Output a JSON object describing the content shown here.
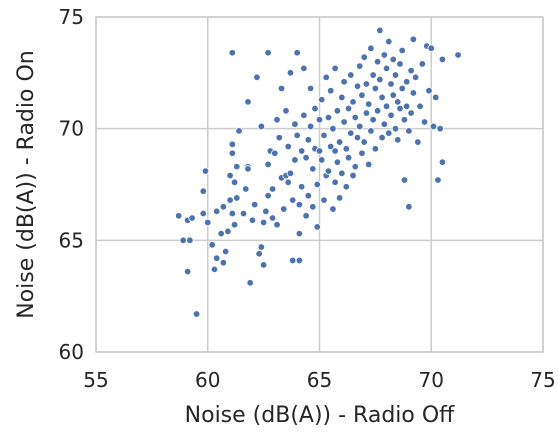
{
  "chart_data": {
    "type": "scatter",
    "xlabel": "Noise (dB(A)) - Radio Off",
    "ylabel": "Noise (dB(A)) - Radio On",
    "xlim": [
      55,
      75
    ],
    "ylim": [
      60,
      75
    ],
    "xticks": [
      "55",
      "60",
      "65",
      "70",
      "75"
    ],
    "yticks": [
      "60",
      "65",
      "70",
      "75"
    ],
    "grid": true,
    "marker_color": "#4c72b0",
    "series": [
      {
        "points": [
          [
            58.7,
            66.1
          ],
          [
            58.9,
            65.0
          ],
          [
            59.1,
            63.6
          ],
          [
            59.1,
            65.9
          ],
          [
            59.2,
            65.0
          ],
          [
            59.3,
            66.0
          ],
          [
            59.5,
            61.7
          ],
          [
            59.8,
            66.2
          ],
          [
            59.8,
            67.2
          ],
          [
            59.9,
            68.1
          ],
          [
            60.0,
            65.8
          ],
          [
            60.2,
            64.8
          ],
          [
            60.3,
            63.7
          ],
          [
            60.4,
            64.2
          ],
          [
            60.4,
            66.3
          ],
          [
            60.6,
            65.3
          ],
          [
            60.7,
            64.0
          ],
          [
            60.7,
            66.5
          ],
          [
            60.8,
            64.5
          ],
          [
            60.9,
            65.4
          ],
          [
            61.0,
            66.8
          ],
          [
            61.0,
            67.9
          ],
          [
            61.1,
            66.2
          ],
          [
            61.1,
            68.9
          ],
          [
            61.1,
            69.3
          ],
          [
            61.2,
            65.7
          ],
          [
            61.2,
            67.6
          ],
          [
            61.1,
            73.4
          ],
          [
            61.3,
            66.9
          ],
          [
            61.3,
            68.3
          ],
          [
            61.4,
            69.9
          ],
          [
            61.6,
            66.2
          ],
          [
            61.7,
            67.3
          ],
          [
            61.8,
            68.3
          ],
          [
            61.9,
            63.1
          ],
          [
            61.8,
            68.2
          ],
          [
            61.8,
            71.2
          ],
          [
            62.0,
            65.9
          ],
          [
            62.1,
            66.6
          ],
          [
            62.2,
            72.3
          ],
          [
            62.3,
            64.4
          ],
          [
            62.4,
            64.7
          ],
          [
            62.4,
            70.1
          ],
          [
            62.5,
            63.9
          ],
          [
            62.5,
            65.8
          ],
          [
            62.6,
            66.3
          ],
          [
            62.7,
            67.0
          ],
          [
            62.7,
            68.4
          ],
          [
            62.8,
            69.0
          ],
          [
            62.7,
            73.4
          ],
          [
            62.9,
            66.0
          ],
          [
            62.9,
            67.3
          ],
          [
            63.0,
            68.9
          ],
          [
            63.1,
            70.4
          ],
          [
            63.1,
            65.7
          ],
          [
            63.2,
            69.6
          ],
          [
            63.3,
            67.8
          ],
          [
            63.3,
            71.8
          ],
          [
            63.4,
            66.4
          ],
          [
            63.5,
            67.9
          ],
          [
            63.5,
            70.8
          ],
          [
            63.6,
            67.6
          ],
          [
            63.6,
            69.2
          ],
          [
            63.7,
            68.0
          ],
          [
            63.7,
            72.5
          ],
          [
            63.8,
            64.1
          ],
          [
            63.8,
            66.8
          ],
          [
            63.9,
            68.6
          ],
          [
            63.9,
            70.2
          ],
          [
            64.0,
            69.7
          ],
          [
            64.0,
            73.4
          ],
          [
            64.1,
            64.1
          ],
          [
            64.1,
            65.3
          ],
          [
            64.1,
            66.6
          ],
          [
            64.2,
            67.4
          ],
          [
            64.2,
            69.0
          ],
          [
            64.3,
            70.6
          ],
          [
            64.3,
            72.7
          ],
          [
            64.4,
            66.1
          ],
          [
            64.4,
            68.7
          ],
          [
            64.5,
            67.0
          ],
          [
            64.5,
            69.5
          ],
          [
            64.6,
            70.1
          ],
          [
            64.6,
            71.8
          ],
          [
            64.7,
            66.5
          ],
          [
            64.7,
            68.2
          ],
          [
            64.8,
            69.1
          ],
          [
            64.8,
            70.9
          ],
          [
            64.9,
            65.6
          ],
          [
            64.9,
            67.5
          ],
          [
            65.0,
            69.0
          ],
          [
            65.0,
            70.4
          ],
          [
            65.1,
            68.6
          ],
          [
            65.1,
            71.3
          ],
          [
            65.2,
            66.8
          ],
          [
            65.2,
            69.7
          ],
          [
            65.3,
            67.9
          ],
          [
            65.3,
            72.3
          ],
          [
            65.4,
            70.5
          ],
          [
            65.4,
            68.1
          ],
          [
            65.5,
            69.2
          ],
          [
            65.5,
            71.7
          ],
          [
            65.6,
            66.4
          ],
          [
            65.6,
            70.0
          ],
          [
            65.7,
            67.6
          ],
          [
            65.7,
            69.0
          ],
          [
            65.7,
            72.7
          ],
          [
            65.8,
            68.5
          ],
          [
            65.8,
            70.8
          ],
          [
            65.9,
            66.9
          ],
          [
            65.9,
            69.4
          ],
          [
            66.0,
            71.4
          ],
          [
            66.0,
            68.0
          ],
          [
            66.1,
            70.3
          ],
          [
            66.1,
            72.1
          ],
          [
            66.2,
            69.1
          ],
          [
            66.2,
            67.4
          ],
          [
            66.3,
            70.9
          ],
          [
            66.3,
            68.7
          ],
          [
            66.4,
            72.4
          ],
          [
            66.4,
            69.8
          ],
          [
            66.5,
            71.2
          ],
          [
            66.5,
            67.9
          ],
          [
            66.6,
            70.5
          ],
          [
            66.6,
            68.3
          ],
          [
            66.7,
            71.9
          ],
          [
            66.7,
            69.6
          ],
          [
            66.8,
            72.8
          ],
          [
            66.8,
            70.1
          ],
          [
            66.9,
            68.9
          ],
          [
            66.9,
            71.5
          ],
          [
            67.0,
            73.2
          ],
          [
            67.0,
            69.4
          ],
          [
            67.1,
            70.7
          ],
          [
            67.1,
            72.0
          ],
          [
            67.2,
            68.4
          ],
          [
            67.2,
            71.1
          ],
          [
            67.3,
            73.6
          ],
          [
            67.3,
            69.9
          ],
          [
            67.4,
            72.4
          ],
          [
            67.4,
            70.4
          ],
          [
            67.5,
            71.8
          ],
          [
            67.5,
            69.1
          ],
          [
            67.6,
            73.0
          ],
          [
            67.6,
            70.8
          ],
          [
            67.7,
            74.4
          ],
          [
            67.7,
            72.2
          ],
          [
            67.8,
            69.6
          ],
          [
            67.8,
            71.4
          ],
          [
            67.9,
            73.3
          ],
          [
            67.9,
            70.2
          ],
          [
            68.0,
            72.7
          ],
          [
            68.0,
            71.0
          ],
          [
            68.1,
            69.8
          ],
          [
            68.1,
            73.9
          ],
          [
            68.2,
            72.0
          ],
          [
            68.2,
            70.6
          ],
          [
            68.3,
            71.5
          ],
          [
            68.3,
            73.1
          ],
          [
            68.4,
            70.0
          ],
          [
            68.4,
            72.4
          ],
          [
            68.5,
            71.2
          ],
          [
            68.5,
            69.5
          ],
          [
            68.6,
            72.9
          ],
          [
            68.6,
            70.9
          ],
          [
            68.7,
            71.8
          ],
          [
            68.7,
            73.5
          ],
          [
            68.8,
            70.4
          ],
          [
            68.8,
            67.7
          ],
          [
            68.9,
            72.1
          ],
          [
            68.9,
            71.0
          ],
          [
            69.0,
            69.9
          ],
          [
            69.0,
            66.5
          ],
          [
            69.1,
            72.6
          ],
          [
            69.1,
            70.7
          ],
          [
            69.2,
            71.6
          ],
          [
            69.2,
            74.0
          ],
          [
            69.3,
            72.3
          ],
          [
            69.4,
            69.4
          ],
          [
            69.5,
            71.0
          ],
          [
            69.6,
            72.9
          ],
          [
            69.7,
            70.3
          ],
          [
            69.8,
            73.7
          ],
          [
            69.9,
            71.7
          ],
          [
            70.0,
            73.6
          ],
          [
            70.1,
            70.1
          ],
          [
            70.2,
            71.4
          ],
          [
            70.3,
            67.7
          ],
          [
            70.4,
            70.0
          ],
          [
            70.5,
            73.1
          ],
          [
            70.5,
            68.5
          ],
          [
            71.2,
            73.3
          ]
        ]
      }
    ]
  }
}
